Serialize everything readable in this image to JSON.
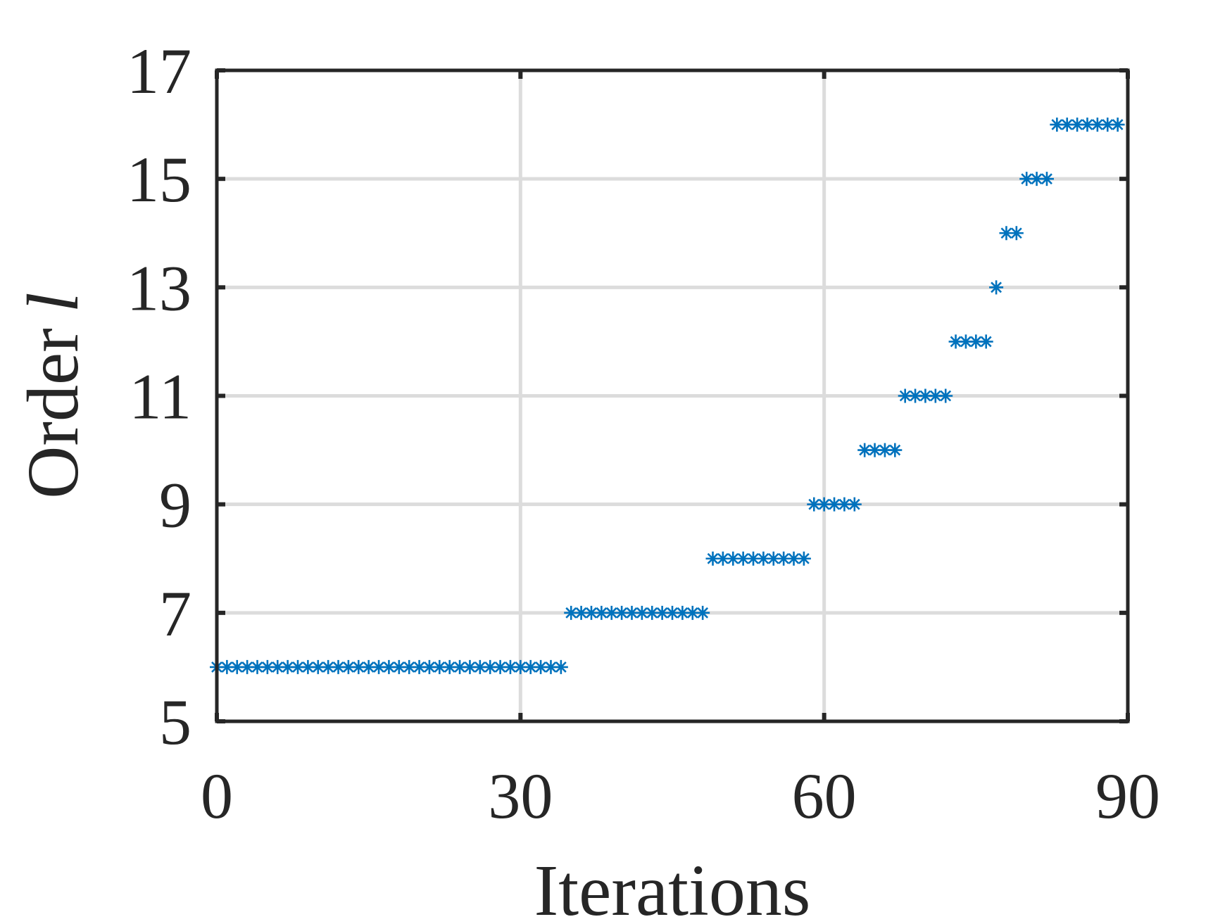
{
  "chart_data": {
    "type": "scatter",
    "xlabel": "Iterations",
    "ylabel": "Order",
    "ylabel_symbol": "l",
    "xlim": [
      0,
      90
    ],
    "ylim": [
      5,
      17
    ],
    "xticks": [
      0,
      30,
      60,
      90
    ],
    "yticks": [
      5,
      7,
      9,
      11,
      13,
      15,
      17
    ],
    "grid": true,
    "marker": "asterisk",
    "color": "#0072bd",
    "series": [
      {
        "x": [
          0,
          1,
          2,
          3,
          4,
          5,
          6,
          7,
          8,
          9,
          10,
          11,
          12,
          13,
          14,
          15,
          16,
          17,
          18,
          19,
          20,
          21,
          22,
          23,
          24,
          25,
          26,
          27,
          28,
          29,
          30,
          31,
          32,
          33,
          34,
          35,
          36,
          37,
          38,
          39,
          40,
          41,
          42,
          43,
          44,
          45,
          46,
          47,
          48,
          49,
          50,
          51,
          52,
          53,
          54,
          55,
          56,
          57,
          58,
          59,
          60,
          61,
          62,
          63,
          64,
          65,
          66,
          67,
          68,
          69,
          70,
          71,
          72,
          73,
          74,
          75,
          76,
          77,
          78,
          79,
          80,
          81,
          82,
          83,
          84,
          85,
          86,
          87,
          88,
          89
        ],
        "y": [
          6,
          6,
          6,
          6,
          6,
          6,
          6,
          6,
          6,
          6,
          6,
          6,
          6,
          6,
          6,
          6,
          6,
          6,
          6,
          6,
          6,
          6,
          6,
          6,
          6,
          6,
          6,
          6,
          6,
          6,
          6,
          6,
          6,
          6,
          6,
          7,
          7,
          7,
          7,
          7,
          7,
          7,
          7,
          7,
          7,
          7,
          7,
          7,
          7,
          8,
          8,
          8,
          8,
          8,
          8,
          8,
          8,
          8,
          8,
          9,
          9,
          9,
          9,
          9,
          10,
          10,
          10,
          10,
          11,
          11,
          11,
          11,
          11,
          12,
          12,
          12,
          12,
          13,
          14,
          14,
          15,
          15,
          15,
          16,
          16,
          16,
          16,
          16,
          16,
          16
        ]
      }
    ]
  }
}
